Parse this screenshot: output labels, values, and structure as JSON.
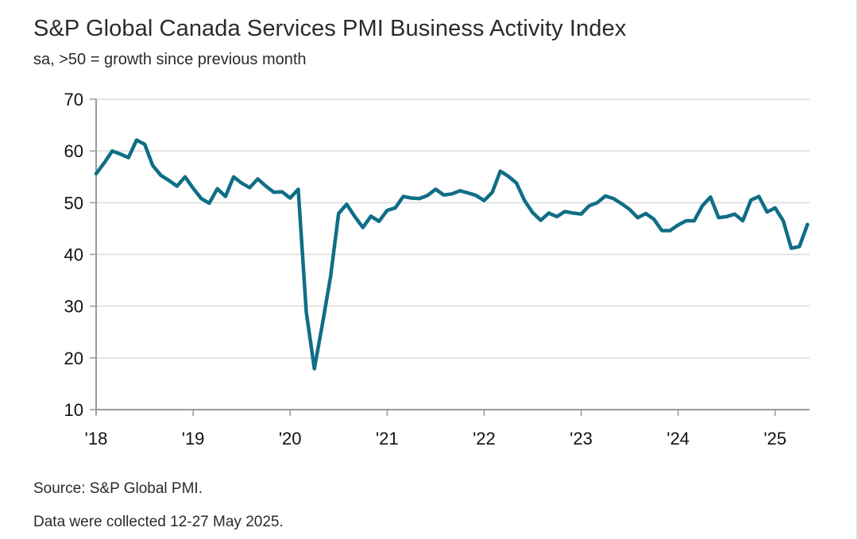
{
  "header": {
    "title": "S&P Global Canada Services PMI Business Activity Index",
    "subtitle": "sa, >50 = growth since previous month"
  },
  "footer": {
    "source": "Source: S&P Global PMI.",
    "note": "Data were collected 12-27 May 2025."
  },
  "colors": {
    "series": "#0f6e86",
    "grid": "#dcdcdc",
    "axis": "#9a9a9a"
  },
  "chart_data": {
    "type": "line",
    "title": "S&P Global Canada Services PMI Business Activity Index",
    "subtitle": "sa, >50 = growth since previous month",
    "xlabel": "",
    "ylabel": "",
    "ylim": [
      10,
      70
    ],
    "yticks": [
      10,
      20,
      30,
      40,
      50,
      60,
      70
    ],
    "xticks": [
      "'18",
      "'19",
      "'20",
      "'21",
      "'22",
      "'23",
      "'24",
      "'25"
    ],
    "x_start": "2018-01",
    "x_end": "2025-05",
    "grid": true,
    "legend": "none",
    "series": [
      {
        "name": "Canada Services PMI Business Activity Index",
        "values": [
          55.6,
          57.7,
          60.0,
          59.4,
          58.7,
          62.1,
          61.3,
          57.2,
          55.3,
          54.3,
          53.2,
          55.0,
          52.8,
          50.8,
          49.9,
          52.7,
          51.2,
          55.0,
          53.8,
          52.9,
          54.6,
          53.2,
          52.0,
          52.1,
          50.9,
          52.6,
          28.9,
          17.9,
          26.6,
          35.7,
          47.9,
          49.7,
          47.3,
          45.2,
          47.4,
          46.4,
          48.5,
          49.0,
          51.2,
          50.9,
          50.8,
          51.4,
          52.6,
          51.5,
          51.7,
          52.3,
          51.9,
          51.4,
          50.4,
          52.0,
          56.1,
          55.1,
          53.8,
          50.4,
          48.1,
          46.6,
          48.0,
          47.3,
          48.3,
          48.0,
          47.8,
          49.4,
          50.0,
          51.3,
          50.8,
          49.8,
          48.7,
          47.1,
          47.9,
          46.8,
          44.6,
          44.6,
          45.7,
          46.5,
          46.5,
          49.4,
          51.1,
          47.1,
          47.3,
          47.8,
          46.5,
          50.5,
          51.2,
          48.2,
          49.0,
          46.5,
          41.2,
          41.5,
          45.8
        ]
      }
    ]
  }
}
